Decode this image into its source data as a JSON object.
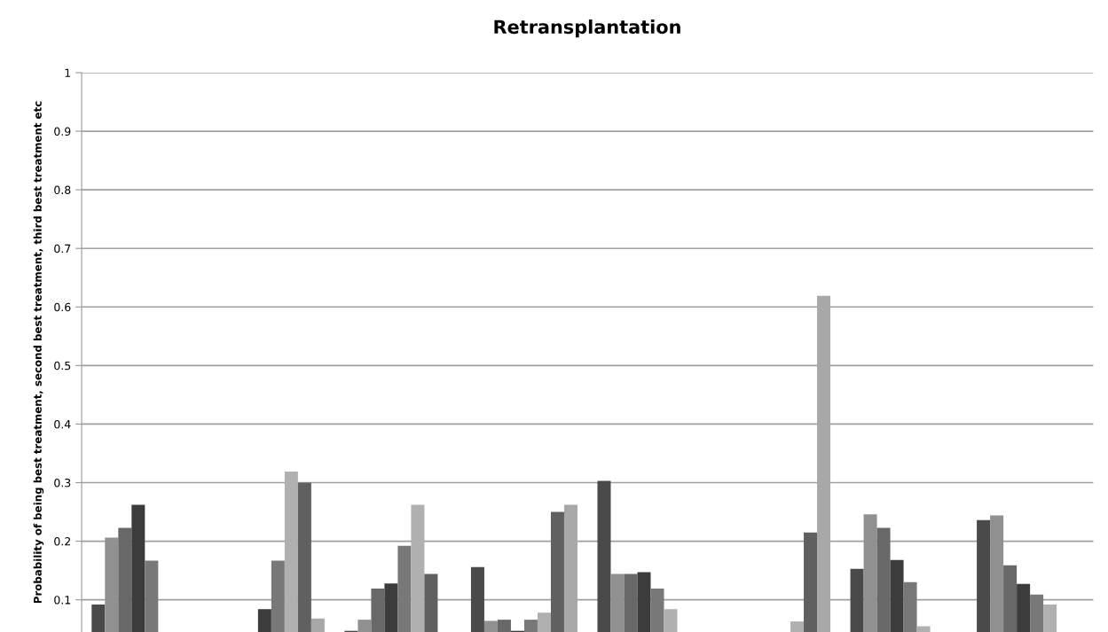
{
  "chart_data": {
    "type": "bar",
    "title": "Retransplantation",
    "ylabel": "Probability of being best treatment, second best treatment, third best treatment etc",
    "categories": [
      null,
      null,
      null,
      null,
      null,
      null,
      null,
      null
    ],
    "series": [
      {
        "color": "#4a4a4a",
        "values": [
          0.092,
          null,
          0.047,
          0.156,
          0.303,
          null,
          0.153,
          0.236
        ]
      },
      {
        "color": "#909090",
        "values": [
          0.206,
          null,
          0.066,
          0.064,
          0.144,
          null,
          0.246,
          0.244
        ]
      },
      {
        "color": "#686868",
        "values": [
          0.223,
          null,
          0.119,
          0.066,
          0.144,
          null,
          0.223,
          0.159
        ]
      },
      {
        "color": "#3c3c3c",
        "values": [
          0.262,
          0.084,
          0.128,
          0.047,
          0.147,
          null,
          0.168,
          0.127
        ]
      },
      {
        "color": "#787878",
        "values": [
          0.167,
          0.167,
          0.192,
          0.066,
          0.119,
          null,
          0.13,
          0.109
        ]
      },
      {
        "color": "#b0b0b0",
        "values": [
          null,
          0.319,
          0.262,
          0.078,
          0.084,
          0.063,
          0.055,
          0.092
        ]
      },
      {
        "color": "#606060",
        "values": [
          null,
          0.3,
          0.144,
          0.25,
          null,
          0.215,
          null,
          null
        ]
      },
      {
        "color": "#a8a8a8",
        "values": [
          null,
          0.068,
          null,
          0.262,
          null,
          0.619,
          null,
          null
        ]
      }
    ],
    "ylim": [
      0.045,
      1
    ],
    "yticks": [
      0.1,
      0.2,
      0.3,
      0.4,
      0.5,
      0.6,
      0.7,
      0.8,
      0.9,
      1
    ],
    "grid": "y",
    "tick_labels": "y"
  }
}
